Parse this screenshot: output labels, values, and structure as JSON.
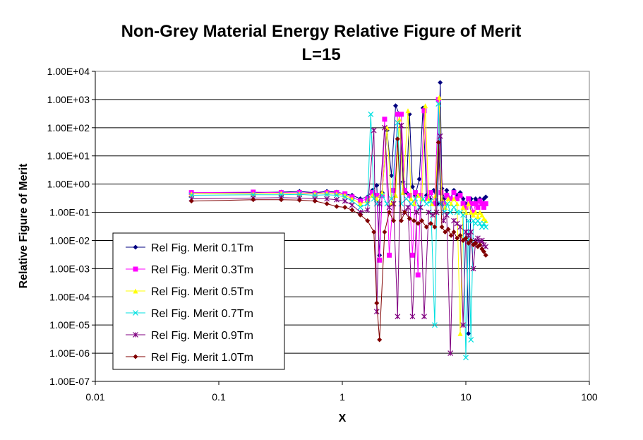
{
  "chart_data": {
    "type": "line",
    "title": "Non-Grey Material Energy Relative Figure of Merit",
    "subtitle": "L=15",
    "xlabel": "X",
    "ylabel": "Relative Figure of Merit",
    "x_scale": "log",
    "y_scale": "log",
    "xlim": [
      0.01,
      100
    ],
    "ylim": [
      1e-07,
      10000
    ],
    "x_ticks": [
      "0.01",
      "0.1",
      "1",
      "10",
      "100"
    ],
    "y_ticks": [
      "1.00E+04",
      "1.00E+03",
      "1.00E+02",
      "1.00E+01",
      "1.00E+00",
      "1.00E-01",
      "1.00E-02",
      "1.00E-03",
      "1.00E-04",
      "1.00E-05",
      "1.00E-06",
      "1.00E-07"
    ],
    "grid": "horizontal major gridlines",
    "legend_position": "lower-left inside plot",
    "series": [
      {
        "name": "Rel Fig. Merit 0.1Tm",
        "color": "#000080",
        "marker": "diamond",
        "points": [
          [
            0.06,
            0.5
          ],
          [
            0.19,
            0.5
          ],
          [
            0.32,
            0.52
          ],
          [
            0.45,
            0.55
          ],
          [
            0.6,
            0.5
          ],
          [
            0.75,
            0.55
          ],
          [
            0.9,
            0.52
          ],
          [
            1.05,
            0.45
          ],
          [
            1.2,
            0.4
          ],
          [
            1.4,
            0.3
          ],
          [
            1.6,
            0.35
          ],
          [
            1.75,
            0.6
          ],
          [
            1.9,
            0.9
          ],
          [
            2.0,
            0.003
          ],
          [
            2.1,
            0.5
          ],
          [
            2.3,
            80
          ],
          [
            2.5,
            2
          ],
          [
            2.7,
            600
          ],
          [
            2.9,
            300
          ],
          [
            3.1,
            1.2
          ],
          [
            3.3,
            0.5
          ],
          [
            3.5,
            300
          ],
          [
            3.7,
            0.8
          ],
          [
            3.9,
            0.4
          ],
          [
            4.2,
            1.5
          ],
          [
            4.5,
            500
          ],
          [
            4.8,
            0.4
          ],
          [
            5.1,
            0.3
          ],
          [
            5.5,
            0.6
          ],
          [
            5.9,
            0.2
          ],
          [
            6.2,
            4000
          ],
          [
            6.4,
            0.7
          ],
          [
            6.7,
            0.3
          ],
          [
            7.0,
            0.6
          ],
          [
            7.5,
            0.3
          ],
          [
            8.0,
            0.6
          ],
          [
            8.5,
            0.4
          ],
          [
            9.0,
            0.5
          ],
          [
            9.5,
            0.3
          ],
          [
            10.0,
            0.2
          ],
          [
            10.5,
            5e-06
          ],
          [
            11.0,
            0.3
          ],
          [
            11.5,
            0.2
          ],
          [
            12.0,
            0.3
          ],
          [
            12.5,
            0.25
          ],
          [
            13.0,
            0.3
          ],
          [
            13.5,
            0.2
          ],
          [
            14.0,
            0.3
          ],
          [
            14.5,
            0.35
          ]
        ]
      },
      {
        "name": "Rel Fig. Merit 0.3Tm",
        "color": "#ff00ff",
        "marker": "square",
        "points": [
          [
            0.06,
            0.5
          ],
          [
            0.19,
            0.52
          ],
          [
            0.32,
            0.5
          ],
          [
            0.45,
            0.5
          ],
          [
            0.6,
            0.48
          ],
          [
            0.75,
            0.5
          ],
          [
            0.9,
            0.5
          ],
          [
            1.05,
            0.45
          ],
          [
            1.2,
            0.35
          ],
          [
            1.4,
            0.25
          ],
          [
            1.6,
            0.3
          ],
          [
            1.75,
            0.5
          ],
          [
            1.9,
            0.4
          ],
          [
            2.0,
            0.002
          ],
          [
            2.1,
            0.4
          ],
          [
            2.2,
            200
          ],
          [
            2.4,
            0.003
          ],
          [
            2.6,
            0.6
          ],
          [
            2.8,
            300
          ],
          [
            3.0,
            300
          ],
          [
            3.2,
            0.6
          ],
          [
            3.5,
            0.4
          ],
          [
            3.7,
            0.003
          ],
          [
            3.9,
            0.5
          ],
          [
            4.1,
            0.0006
          ],
          [
            4.3,
            0.4
          ],
          [
            4.6,
            400
          ],
          [
            4.9,
            0.3
          ],
          [
            5.2,
            0.5
          ],
          [
            5.6,
            0.2
          ],
          [
            6.0,
            1000
          ],
          [
            6.3,
            0.5
          ],
          [
            6.6,
            0.2
          ],
          [
            7.0,
            0.4
          ],
          [
            7.5,
            0.3
          ],
          [
            8.0,
            0.5
          ],
          [
            8.5,
            0.3
          ],
          [
            9.0,
            0.4
          ],
          [
            9.5,
            0.2
          ],
          [
            10.0,
            0.15
          ],
          [
            10.5,
            0.3
          ],
          [
            11.0,
            0.2
          ],
          [
            11.5,
            0.1
          ],
          [
            12.0,
            0.2
          ],
          [
            12.5,
            0.15
          ],
          [
            13.0,
            0.25
          ],
          [
            13.5,
            0.2
          ],
          [
            14.0,
            0.15
          ],
          [
            14.5,
            0.2
          ]
        ]
      },
      {
        "name": "Rel Fig. Merit 0.5Tm",
        "color": "#ffff00",
        "marker": "triangle",
        "points": [
          [
            0.06,
            0.45
          ],
          [
            0.19,
            0.45
          ],
          [
            0.32,
            0.47
          ],
          [
            0.45,
            0.45
          ],
          [
            0.6,
            0.45
          ],
          [
            0.75,
            0.48
          ],
          [
            0.9,
            0.45
          ],
          [
            1.05,
            0.4
          ],
          [
            1.2,
            0.3
          ],
          [
            1.4,
            0.2
          ],
          [
            1.6,
            0.25
          ],
          [
            1.75,
            0.4
          ],
          [
            1.9,
            0.3
          ],
          [
            2.1,
            0.5
          ],
          [
            2.3,
            100
          ],
          [
            2.5,
            0.2
          ],
          [
            2.7,
            0.4
          ],
          [
            2.9,
            200
          ],
          [
            3.1,
            0.5
          ],
          [
            3.4,
            400
          ],
          [
            3.6,
            0.3
          ],
          [
            3.8,
            0.2
          ],
          [
            4.1,
            0.4
          ],
          [
            4.4,
            0.3
          ],
          [
            4.7,
            600
          ],
          [
            5.0,
            0.3
          ],
          [
            5.3,
            0.2
          ],
          [
            5.7,
            0.4
          ],
          [
            6.1,
            1200
          ],
          [
            6.4,
            0.3
          ],
          [
            6.8,
            0.15
          ],
          [
            7.2,
            0.3
          ],
          [
            7.6,
            0.2
          ],
          [
            8.0,
            0.3
          ],
          [
            8.5,
            0.2
          ],
          [
            9.0,
            5e-06
          ],
          [
            9.5,
            0.15
          ],
          [
            10.0,
            0.1
          ],
          [
            10.5,
            0.2
          ],
          [
            11.0,
            0.1
          ],
          [
            11.5,
            0.08
          ],
          [
            12.0,
            0.1
          ],
          [
            12.5,
            0.07
          ],
          [
            13.0,
            0.1
          ],
          [
            13.5,
            0.08
          ],
          [
            14.0,
            0.06
          ],
          [
            14.5,
            0.05
          ]
        ]
      },
      {
        "name": "Rel Fig. Merit 0.7Tm",
        "color": "#00e0e0",
        "marker": "x",
        "points": [
          [
            0.06,
            0.4
          ],
          [
            0.19,
            0.42
          ],
          [
            0.32,
            0.42
          ],
          [
            0.45,
            0.43
          ],
          [
            0.6,
            0.4
          ],
          [
            0.75,
            0.42
          ],
          [
            0.9,
            0.4
          ],
          [
            1.05,
            0.35
          ],
          [
            1.2,
            0.25
          ],
          [
            1.4,
            0.15
          ],
          [
            1.6,
            0.2
          ],
          [
            1.7,
            300
          ],
          [
            1.8,
            0.3
          ],
          [
            1.9,
            0.2
          ],
          [
            2.1,
            0.4
          ],
          [
            2.3,
            0.2
          ],
          [
            2.5,
            0.3
          ],
          [
            2.8,
            150
          ],
          [
            3.0,
            0.2
          ],
          [
            3.3,
            0.3
          ],
          [
            3.6,
            0.2
          ],
          [
            3.9,
            0.3
          ],
          [
            4.2,
            0.15
          ],
          [
            4.5,
            0.3
          ],
          [
            4.8,
            0.2
          ],
          [
            5.2,
            0.25
          ],
          [
            5.6,
            1e-05
          ],
          [
            6.0,
            700
          ],
          [
            6.3,
            0.2
          ],
          [
            6.7,
            0.1
          ],
          [
            7.1,
            0.2
          ],
          [
            7.5,
            0.1
          ],
          [
            8.0,
            0.15
          ],
          [
            8.5,
            0.1
          ],
          [
            9.0,
            0.1
          ],
          [
            9.5,
            0.08
          ],
          [
            10.0,
            7e-07
          ],
          [
            10.5,
            0.05
          ],
          [
            11.0,
            3e-06
          ],
          [
            11.5,
            0.05
          ],
          [
            12.0,
            0.04
          ],
          [
            12.5,
            0.05
          ],
          [
            13.0,
            0.04
          ],
          [
            13.5,
            0.03
          ],
          [
            14.0,
            0.04
          ],
          [
            14.5,
            0.03
          ]
        ]
      },
      {
        "name": "Rel Fig. Merit 0.9Tm",
        "color": "#800080",
        "marker": "asterisk",
        "points": [
          [
            0.06,
            0.3
          ],
          [
            0.19,
            0.32
          ],
          [
            0.32,
            0.33
          ],
          [
            0.45,
            0.32
          ],
          [
            0.6,
            0.3
          ],
          [
            0.75,
            0.3
          ],
          [
            0.9,
            0.28
          ],
          [
            1.05,
            0.25
          ],
          [
            1.2,
            0.18
          ],
          [
            1.4,
            0.1
          ],
          [
            1.6,
            0.12
          ],
          [
            1.8,
            80
          ],
          [
            1.9,
            3e-05
          ],
          [
            2.0,
            0.2
          ],
          [
            2.2,
            100
          ],
          [
            2.4,
            0.15
          ],
          [
            2.6,
            0.2
          ],
          [
            2.8,
            2e-05
          ],
          [
            3.0,
            120
          ],
          [
            3.2,
            0.1
          ],
          [
            3.4,
            0.15
          ],
          [
            3.7,
            2e-05
          ],
          [
            4.0,
            0.1
          ],
          [
            4.3,
            0.15
          ],
          [
            4.6,
            2e-05
          ],
          [
            5.0,
            0.1
          ],
          [
            5.4,
            0.08
          ],
          [
            5.8,
            0.1
          ],
          [
            6.2,
            50
          ],
          [
            6.6,
            0.05
          ],
          [
            7.0,
            0.08
          ],
          [
            7.5,
            1e-06
          ],
          [
            8.0,
            0.05
          ],
          [
            8.5,
            0.04
          ],
          [
            9.0,
            0.03
          ],
          [
            9.5,
            1e-05
          ],
          [
            10.0,
            0.02
          ],
          [
            10.5,
            0.015
          ],
          [
            11.0,
            0.02
          ],
          [
            11.5,
            0.001
          ],
          [
            12.0,
            0.01
          ],
          [
            12.5,
            0.012
          ],
          [
            13.0,
            0.008
          ],
          [
            13.5,
            0.01
          ],
          [
            14.0,
            0.007
          ],
          [
            14.5,
            0.006
          ]
        ]
      },
      {
        "name": "Rel Fig. Merit 1.0Tm",
        "color": "#800000",
        "marker": "diamond",
        "points": [
          [
            0.06,
            0.25
          ],
          [
            0.19,
            0.28
          ],
          [
            0.32,
            0.28
          ],
          [
            0.45,
            0.27
          ],
          [
            0.6,
            0.25
          ],
          [
            0.75,
            0.2
          ],
          [
            0.9,
            0.16
          ],
          [
            1.05,
            0.15
          ],
          [
            1.2,
            0.12
          ],
          [
            1.4,
            0.08
          ],
          [
            1.6,
            0.05
          ],
          [
            1.8,
            0.02
          ],
          [
            1.9,
            6e-05
          ],
          [
            2.0,
            3e-06
          ],
          [
            2.2,
            0.02
          ],
          [
            2.4,
            0.1
          ],
          [
            2.6,
            0.05
          ],
          [
            2.8,
            40
          ],
          [
            3.0,
            0.05
          ],
          [
            3.2,
            0.1
          ],
          [
            3.5,
            0.06
          ],
          [
            3.8,
            0.05
          ],
          [
            4.1,
            0.04
          ],
          [
            4.4,
            0.05
          ],
          [
            4.8,
            0.03
          ],
          [
            5.2,
            0.04
          ],
          [
            5.6,
            0.03
          ],
          [
            6.0,
            30
          ],
          [
            6.4,
            0.03
          ],
          [
            6.8,
            0.02
          ],
          [
            7.2,
            0.025
          ],
          [
            7.6,
            0.015
          ],
          [
            8.0,
            0.02
          ],
          [
            8.5,
            0.012
          ],
          [
            9.0,
            0.015
          ],
          [
            9.5,
            0.01
          ],
          [
            10.0,
            0.012
          ],
          [
            10.5,
            0.008
          ],
          [
            11.0,
            0.01
          ],
          [
            11.5,
            0.007
          ],
          [
            12.0,
            0.008
          ],
          [
            12.5,
            0.006
          ],
          [
            13.0,
            0.007
          ],
          [
            13.5,
            0.005
          ],
          [
            14.0,
            0.004
          ],
          [
            14.5,
            0.003
          ]
        ]
      }
    ]
  }
}
